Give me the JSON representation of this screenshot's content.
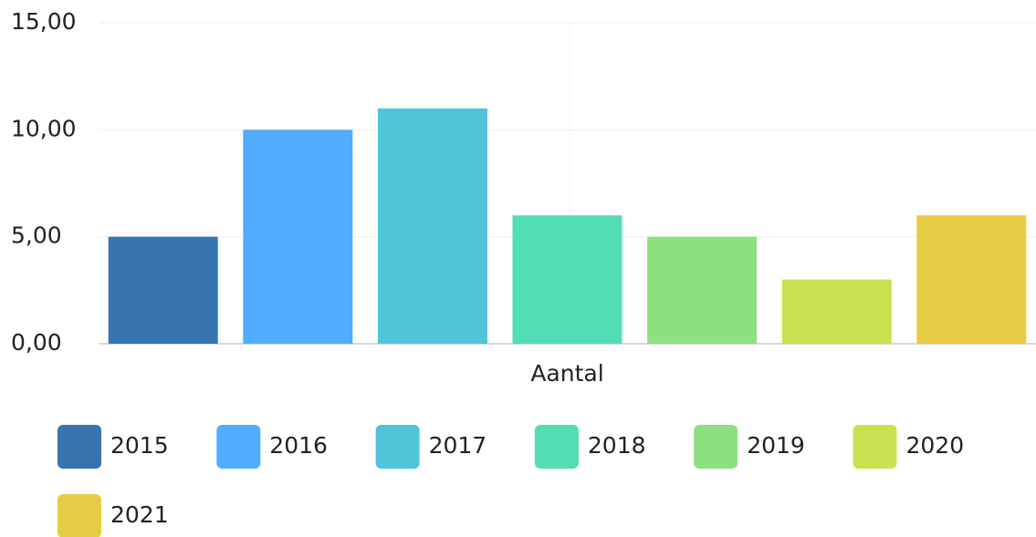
{
  "chart_data": {
    "type": "bar",
    "categories": [
      "Aantal"
    ],
    "series": [
      {
        "name": "2015",
        "color": "#3774b0",
        "values": [
          5
        ]
      },
      {
        "name": "2016",
        "color": "#4facff",
        "values": [
          10
        ]
      },
      {
        "name": "2017",
        "color": "#50c4d8",
        "values": [
          11
        ]
      },
      {
        "name": "2018",
        "color": "#52ddb5",
        "values": [
          6
        ]
      },
      {
        "name": "2019",
        "color": "#8de07f",
        "values": [
          5
        ]
      },
      {
        "name": "2020",
        "color": "#c8e24f",
        "values": [
          3
        ]
      },
      {
        "name": "2021",
        "color": "#e6cc45",
        "values": [
          6
        ]
      }
    ],
    "ylim": [
      0,
      15
    ],
    "yticks": [
      {
        "value": 0,
        "label": "0,00"
      },
      {
        "value": 5,
        "label": "5,00"
      },
      {
        "value": 10,
        "label": "10,00"
      },
      {
        "value": 15,
        "label": "15,00"
      }
    ],
    "grid": true,
    "legend": "bottom"
  }
}
